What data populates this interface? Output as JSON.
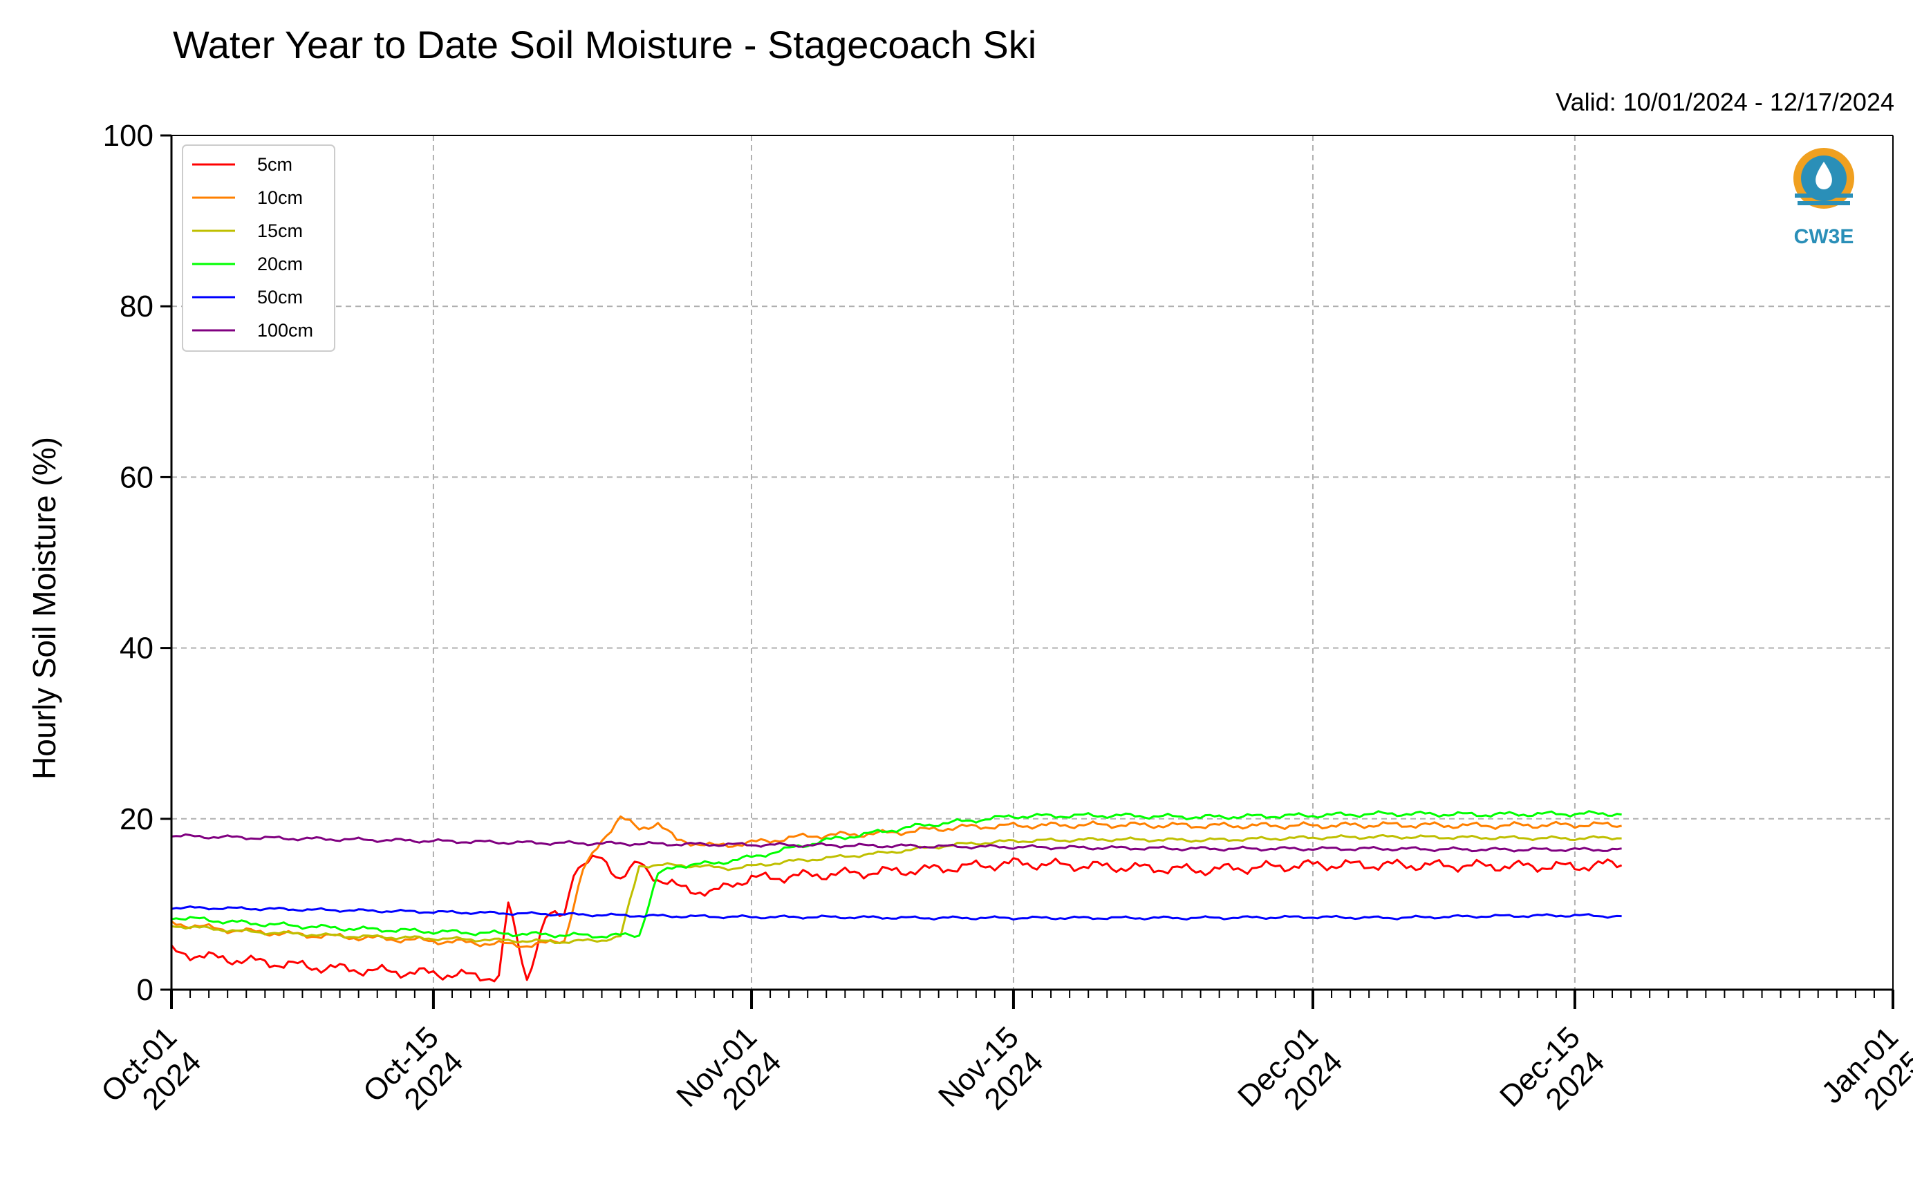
{
  "chart_data": {
    "type": "line",
    "title": "Water Year to Date Soil Moisture - Stagecoach Ski",
    "subtitle": "Valid: 10/01/2024 - 12/17/2024",
    "xlabel": "",
    "ylabel": "Hourly Soil Moisture (%)",
    "xlim": [
      "2024-10-01",
      "2025-01-01"
    ],
    "ylim": [
      0,
      100
    ],
    "grid": true,
    "legend_position": "top-left",
    "y_ticks": [
      0,
      20,
      40,
      60,
      80,
      100
    ],
    "x_ticks": [
      {
        "date": "2024-10-01",
        "line1": "Oct-01",
        "line2": "2024"
      },
      {
        "date": "2024-10-15",
        "line1": "Oct-15",
        "line2": "2024"
      },
      {
        "date": "2024-11-01",
        "line1": "Nov-01",
        "line2": "2024"
      },
      {
        "date": "2024-11-15",
        "line1": "Nov-15",
        "line2": "2024"
      },
      {
        "date": "2024-12-01",
        "line1": "Dec-01",
        "line2": "2024"
      },
      {
        "date": "2024-12-15",
        "line1": "Dec-15",
        "line2": "2024"
      },
      {
        "date": "2025-01-01",
        "line1": "Jan-01",
        "line2": "2025"
      }
    ],
    "series": [
      {
        "name": "5cm",
        "color": "#ff0000",
        "x": [
          "2024-10-01",
          "2024-10-03",
          "2024-10-06",
          "2024-10-09",
          "2024-10-12",
          "2024-10-15",
          "2024-10-18",
          "2024-10-20",
          "2024-10-18T12:00",
          "2024-10-19",
          "2024-10-21",
          "2024-10-22",
          "2024-10-22T12:00",
          "2024-10-24",
          "2024-10-25",
          "2024-10-26",
          "2024-10-27",
          "2024-10-28",
          "2024-10-30",
          "2024-10-31",
          "2024-11-01",
          "2024-11-05",
          "2024-11-10",
          "2024-11-15",
          "2024-11-20",
          "2024-11-25",
          "2024-12-01",
          "2024-12-05",
          "2024-12-10",
          "2024-12-15",
          "2024-12-17"
        ],
        "y": [
          4.5,
          3.8,
          3.2,
          2.6,
          2.2,
          1.9,
          1.5,
          1.3,
          1.4,
          10.0,
          8.3,
          9.0,
          14.0,
          15.5,
          13.0,
          14.8,
          13.0,
          12.0,
          11.3,
          12.5,
          13.0,
          13.5,
          14.0,
          14.8,
          14.4,
          14.0,
          14.6,
          14.6,
          14.5,
          14.4,
          14.7
        ]
      },
      {
        "name": "10cm",
        "color": "#ff8000",
        "x": [
          "2024-10-01",
          "2024-10-04",
          "2024-10-08",
          "2024-10-12",
          "2024-10-16",
          "2024-10-20",
          "2024-10-21",
          "2024-10-22",
          "2024-10-23",
          "2024-10-24",
          "2024-10-25",
          "2024-10-26",
          "2024-10-27",
          "2024-10-28",
          "2024-10-30",
          "2024-11-01",
          "2024-11-04",
          "2024-11-08",
          "2024-11-12",
          "2024-11-15",
          "2024-11-20",
          "2024-11-25",
          "2024-12-01",
          "2024-12-05",
          "2024-12-10",
          "2024-12-15",
          "2024-12-17"
        ],
        "y": [
          7.8,
          7.0,
          6.4,
          6.0,
          5.6,
          5.2,
          5.4,
          5.8,
          14.0,
          17.5,
          20.2,
          18.8,
          19.5,
          17.5,
          16.8,
          17.2,
          18.0,
          18.3,
          19.0,
          19.2,
          19.3,
          19.2,
          19.2,
          19.3,
          19.2,
          19.3,
          19.3
        ]
      },
      {
        "name": "15cm",
        "color": "#bfbf00",
        "x": [
          "2024-10-01",
          "2024-10-05",
          "2024-10-10",
          "2024-10-15",
          "2024-10-20",
          "2024-10-22",
          "2024-10-24",
          "2024-10-25",
          "2024-10-26",
          "2024-10-28",
          "2024-10-31",
          "2024-11-03",
          "2024-11-08",
          "2024-11-12",
          "2024-11-15",
          "2024-11-20",
          "2024-11-25",
          "2024-12-01",
          "2024-12-05",
          "2024-12-10",
          "2024-12-15",
          "2024-12-17"
        ],
        "y": [
          7.5,
          6.8,
          6.3,
          6.0,
          5.7,
          5.6,
          5.8,
          6.2,
          14.5,
          14.6,
          14.2,
          15.0,
          16.0,
          17.0,
          17.4,
          17.6,
          17.5,
          17.8,
          17.9,
          17.8,
          17.7,
          17.8
        ]
      },
      {
        "name": "20cm",
        "color": "#00ff00",
        "x": [
          "2024-10-01",
          "2024-10-05",
          "2024-10-10",
          "2024-10-15",
          "2024-10-20",
          "2024-10-24",
          "2024-10-26",
          "2024-10-27",
          "2024-10-28",
          "2024-10-30",
          "2024-11-01",
          "2024-11-05",
          "2024-11-10",
          "2024-11-15",
          "2024-11-20",
          "2024-11-25",
          "2024-12-01",
          "2024-12-05",
          "2024-12-10",
          "2024-12-15",
          "2024-12-17"
        ],
        "y": [
          8.5,
          7.8,
          7.2,
          6.8,
          6.5,
          6.3,
          6.4,
          13.5,
          14.5,
          14.8,
          15.5,
          17.5,
          19.2,
          20.3,
          20.4,
          20.2,
          20.4,
          20.6,
          20.5,
          20.6,
          20.6
        ]
      },
      {
        "name": "50cm",
        "color": "#0000ff",
        "x": [
          "2024-10-01",
          "2024-10-05",
          "2024-10-10",
          "2024-10-15",
          "2024-10-20",
          "2024-10-25",
          "2024-10-28",
          "2024-11-01",
          "2024-11-05",
          "2024-11-10",
          "2024-11-15",
          "2024-11-20",
          "2024-11-25",
          "2024-12-01",
          "2024-12-05",
          "2024-12-10",
          "2024-12-15",
          "2024-12-17"
        ],
        "y": [
          9.6,
          9.5,
          9.3,
          9.1,
          8.9,
          8.7,
          8.6,
          8.5,
          8.5,
          8.4,
          8.4,
          8.4,
          8.4,
          8.5,
          8.4,
          8.6,
          8.7,
          8.6
        ]
      },
      {
        "name": "100cm",
        "color": "#800080",
        "x": [
          "2024-10-01",
          "2024-10-05",
          "2024-10-10",
          "2024-10-15",
          "2024-10-20",
          "2024-10-25",
          "2024-10-30",
          "2024-11-05",
          "2024-11-10",
          "2024-11-15",
          "2024-11-20",
          "2024-11-25",
          "2024-12-01",
          "2024-12-05",
          "2024-12-10",
          "2024-12-15",
          "2024-12-17"
        ],
        "y": [
          18.0,
          17.8,
          17.6,
          17.4,
          17.2,
          17.1,
          17.0,
          16.9,
          16.8,
          16.7,
          16.6,
          16.5,
          16.5,
          16.5,
          16.4,
          16.4,
          16.4
        ]
      }
    ]
  },
  "logo": {
    "text": "CW3E",
    "color": "#2a8fb8",
    "accent": "#f0a020"
  }
}
